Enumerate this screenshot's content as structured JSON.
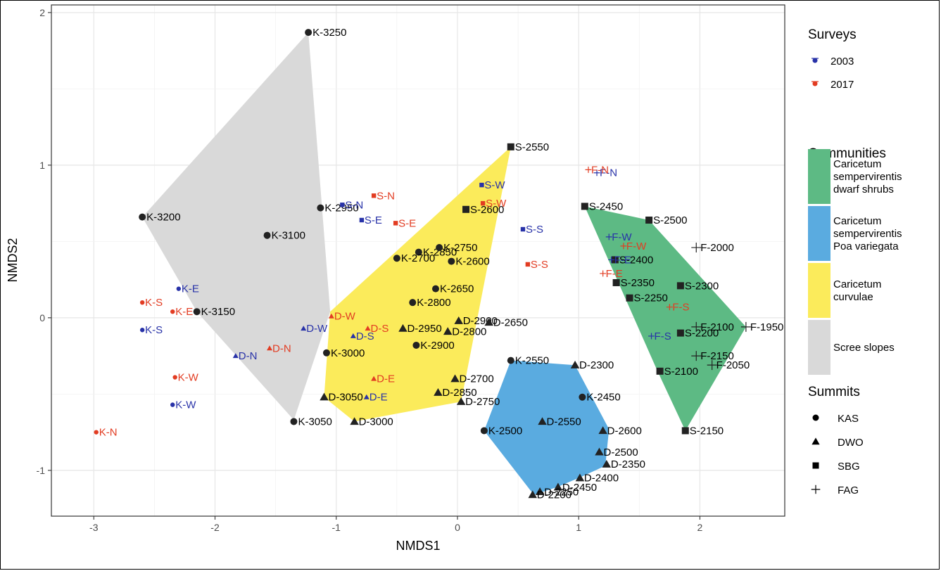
{
  "chart_data": {
    "type": "scatter",
    "xlabel": "NMDS1",
    "ylabel": "NMDS2",
    "xlim": [
      -3.35,
      2.7
    ],
    "ylim": [
      -1.3,
      2.05
    ],
    "xticks": [
      -3,
      -2,
      -1,
      0,
      1,
      2
    ],
    "yticks": [
      -1,
      0,
      1,
      2
    ],
    "xtick_labels": [
      "-3",
      "-2",
      "-1",
      "0",
      "1",
      "2"
    ],
    "ytick_labels": [
      "-1",
      "0",
      "1",
      "2"
    ],
    "grid": true,
    "legend_position": "right",
    "colors": {
      "2003": "#2832a8",
      "2017": "#e23c22",
      "sites": "#222222",
      "scree": "#d9d9d9",
      "curvulae": "#fbeb5b",
      "poa": "#5aabe0",
      "dwarf": "#5dba84"
    },
    "hulls": [
      {
        "key": "scree",
        "points": [
          [
            -2.6,
            0.66
          ],
          [
            -1.23,
            1.87
          ],
          [
            -1.05,
            0.04
          ],
          [
            -1.35,
            -0.67
          ],
          [
            -2.15,
            0.04
          ]
        ]
      },
      {
        "key": "curvulae",
        "points": [
          [
            -1.05,
            0.04
          ],
          [
            0.44,
            1.12
          ],
          [
            0.03,
            -0.55
          ],
          [
            -0.85,
            -0.68
          ],
          [
            -1.1,
            -0.52
          ]
        ]
      },
      {
        "key": "poa",
        "points": [
          [
            0.44,
            -0.28
          ],
          [
            0.97,
            -0.31
          ],
          [
            1.25,
            -0.73
          ],
          [
            1.22,
            -0.97
          ],
          [
            1.0,
            -1.05
          ],
          [
            0.82,
            -1.11
          ],
          [
            0.63,
            -1.16
          ],
          [
            0.22,
            -0.74
          ]
        ]
      },
      {
        "key": "dwarf",
        "points": [
          [
            1.05,
            0.73
          ],
          [
            1.58,
            0.64
          ],
          [
            2.38,
            -0.06
          ],
          [
            1.88,
            -0.74
          ],
          [
            1.65,
            -0.35
          ]
        ]
      }
    ],
    "points": [
      {
        "label": "K-3250",
        "x": -1.23,
        "y": 1.87,
        "shape": "circle",
        "group": "sites"
      },
      {
        "label": "K-3200",
        "x": -2.6,
        "y": 0.66,
        "shape": "circle",
        "group": "sites"
      },
      {
        "label": "K-3100",
        "x": -1.57,
        "y": 0.54,
        "shape": "circle",
        "group": "sites"
      },
      {
        "label": "K-3150",
        "x": -2.15,
        "y": 0.04,
        "shape": "circle",
        "group": "sites"
      },
      {
        "label": "K-2950",
        "x": -1.13,
        "y": 0.72,
        "shape": "circle",
        "group": "sites"
      },
      {
        "label": "K-3000",
        "x": -1.08,
        "y": -0.23,
        "shape": "circle",
        "group": "sites"
      },
      {
        "label": "K-3050",
        "x": -1.35,
        "y": -0.68,
        "shape": "circle",
        "group": "sites"
      },
      {
        "label": "K-2850",
        "x": -0.32,
        "y": 0.43,
        "shape": "circle",
        "group": "sites"
      },
      {
        "label": "K-2750",
        "x": -0.15,
        "y": 0.46,
        "shape": "circle",
        "group": "sites"
      },
      {
        "label": "K-2700",
        "x": -0.5,
        "y": 0.39,
        "shape": "circle",
        "group": "sites"
      },
      {
        "label": "K-2600",
        "x": -0.05,
        "y": 0.37,
        "shape": "circle",
        "group": "sites"
      },
      {
        "label": "K-2650",
        "x": -0.18,
        "y": 0.19,
        "shape": "circle",
        "group": "sites"
      },
      {
        "label": "K-2800",
        "x": -0.37,
        "y": 0.1,
        "shape": "circle",
        "group": "sites"
      },
      {
        "label": "K-2900",
        "x": -0.34,
        "y": -0.18,
        "shape": "circle",
        "group": "sites"
      },
      {
        "label": "K-2550",
        "x": 0.44,
        "y": -0.28,
        "shape": "circle",
        "group": "sites"
      },
      {
        "label": "K-2450",
        "x": 1.03,
        "y": -0.52,
        "shape": "circle",
        "group": "sites"
      },
      {
        "label": "K-2500",
        "x": 0.22,
        "y": -0.74,
        "shape": "circle",
        "group": "sites"
      },
      {
        "label": "S-2550",
        "x": 0.44,
        "y": 1.12,
        "shape": "square",
        "group": "sites"
      },
      {
        "label": "S-2600",
        "x": 0.07,
        "y": 0.71,
        "shape": "square",
        "group": "sites"
      },
      {
        "label": "S-2450",
        "x": 1.05,
        "y": 0.73,
        "shape": "square",
        "group": "sites"
      },
      {
        "label": "S-2500",
        "x": 1.58,
        "y": 0.64,
        "shape": "square",
        "group": "sites"
      },
      {
        "label": "S-2400",
        "x": 1.3,
        "y": 0.38,
        "shape": "square",
        "group": "sites"
      },
      {
        "label": "S-2350",
        "x": 1.31,
        "y": 0.23,
        "shape": "square",
        "group": "sites"
      },
      {
        "label": "S-2300",
        "x": 1.84,
        "y": 0.21,
        "shape": "square",
        "group": "sites"
      },
      {
        "label": "S-2250",
        "x": 1.42,
        "y": 0.13,
        "shape": "square",
        "group": "sites"
      },
      {
        "label": "S-2200",
        "x": 1.84,
        "y": -0.1,
        "shape": "square",
        "group": "sites"
      },
      {
        "label": "S-2100",
        "x": 1.67,
        "y": -0.35,
        "shape": "square",
        "group": "sites"
      },
      {
        "label": "S-2150",
        "x": 1.88,
        "y": -0.74,
        "shape": "square",
        "group": "sites"
      },
      {
        "label": "D-2950",
        "x": -0.45,
        "y": -0.07,
        "shape": "triangle",
        "group": "sites"
      },
      {
        "label": "D-2900",
        "x": 0.01,
        "y": -0.02,
        "shape": "triangle",
        "group": "sites"
      },
      {
        "label": "D-2800",
        "x": -0.08,
        "y": -0.09,
        "shape": "triangle",
        "group": "sites"
      },
      {
        "label": "D-2650",
        "x": 0.26,
        "y": -0.03,
        "shape": "triangle",
        "group": "sites"
      },
      {
        "label": "D-2700",
        "x": -0.02,
        "y": -0.4,
        "shape": "triangle",
        "group": "sites"
      },
      {
        "label": "D-2850",
        "x": -0.16,
        "y": -0.49,
        "shape": "triangle",
        "group": "sites"
      },
      {
        "label": "D-2750",
        "x": 0.03,
        "y": -0.55,
        "shape": "triangle",
        "group": "sites"
      },
      {
        "label": "D-3050",
        "x": -1.1,
        "y": -0.52,
        "shape": "triangle",
        "group": "sites"
      },
      {
        "label": "D-3000",
        "x": -0.85,
        "y": -0.68,
        "shape": "triangle",
        "group": "sites"
      },
      {
        "label": "D-2300",
        "x": 0.97,
        "y": -0.31,
        "shape": "triangle",
        "group": "sites"
      },
      {
        "label": "D-2550",
        "x": 0.7,
        "y": -0.68,
        "shape": "triangle",
        "group": "sites"
      },
      {
        "label": "D-2600",
        "x": 1.2,
        "y": -0.74,
        "shape": "triangle",
        "group": "sites"
      },
      {
        "label": "D-2500",
        "x": 1.17,
        "y": -0.88,
        "shape": "triangle",
        "group": "sites"
      },
      {
        "label": "D-2350",
        "x": 1.23,
        "y": -0.96,
        "shape": "triangle",
        "group": "sites"
      },
      {
        "label": "D-2400",
        "x": 1.01,
        "y": -1.05,
        "shape": "triangle",
        "group": "sites"
      },
      {
        "label": "D-2450",
        "x": 0.83,
        "y": -1.11,
        "shape": "triangle",
        "group": "sites"
      },
      {
        "label": "D-2250",
        "x": 0.68,
        "y": -1.14,
        "shape": "triangle",
        "group": "sites"
      },
      {
        "label": "D-2200",
        "x": 0.62,
        "y": -1.16,
        "shape": "triangle",
        "group": "sites"
      },
      {
        "label": "F-2000",
        "x": 1.97,
        "y": 0.46,
        "shape": "plus",
        "group": "sites"
      },
      {
        "label": "F-2100",
        "x": 1.97,
        "y": -0.06,
        "shape": "plus",
        "group": "sites"
      },
      {
        "label": "F-1950",
        "x": 2.38,
        "y": -0.06,
        "shape": "plus",
        "group": "sites"
      },
      {
        "label": "F-2150",
        "x": 1.97,
        "y": -0.25,
        "shape": "plus",
        "group": "sites"
      },
      {
        "label": "F-2050",
        "x": 2.1,
        "y": -0.31,
        "shape": "plus",
        "group": "sites"
      },
      {
        "label": "K-E",
        "x": -2.3,
        "y": 0.19,
        "shape": "circle",
        "group": "2003"
      },
      {
        "label": "K-S",
        "x": -2.6,
        "y": -0.08,
        "shape": "circle",
        "group": "2003"
      },
      {
        "label": "K-W",
        "x": -2.35,
        "y": -0.57,
        "shape": "circle",
        "group": "2003"
      },
      {
        "label": "D-W",
        "x": -1.27,
        "y": -0.07,
        "shape": "triangle",
        "group": "2003"
      },
      {
        "label": "D-N",
        "x": -1.83,
        "y": -0.25,
        "shape": "triangle",
        "group": "2003"
      },
      {
        "label": "D-S",
        "x": -0.86,
        "y": -0.12,
        "shape": "triangle",
        "group": "2003"
      },
      {
        "label": "D-E",
        "x": -0.75,
        "y": -0.52,
        "shape": "triangle",
        "group": "2003"
      },
      {
        "label": "S-N",
        "x": -0.95,
        "y": 0.74,
        "shape": "square",
        "group": "2003"
      },
      {
        "label": "S-E",
        "x": -0.79,
        "y": 0.64,
        "shape": "square",
        "group": "2003"
      },
      {
        "label": "S-W",
        "x": 0.2,
        "y": 0.87,
        "shape": "square",
        "group": "2003"
      },
      {
        "label": "S-S",
        "x": 0.54,
        "y": 0.58,
        "shape": "square",
        "group": "2003"
      },
      {
        "label": "F-N",
        "x": 1.15,
        "y": 0.95,
        "shape": "plus",
        "group": "2003"
      },
      {
        "label": "F-W",
        "x": 1.25,
        "y": 0.53,
        "shape": "plus",
        "group": "2003"
      },
      {
        "label": "F-E",
        "x": 1.27,
        "y": 0.38,
        "shape": "plus",
        "group": "2003"
      },
      {
        "label": "F-S",
        "x": 1.6,
        "y": -0.12,
        "shape": "plus",
        "group": "2003"
      },
      {
        "label": "K-S",
        "x": -2.6,
        "y": 0.1,
        "shape": "circle",
        "group": "2017"
      },
      {
        "label": "K-E",
        "x": -2.35,
        "y": 0.04,
        "shape": "circle",
        "group": "2017"
      },
      {
        "label": "K-W",
        "x": -2.33,
        "y": -0.39,
        "shape": "circle",
        "group": "2017"
      },
      {
        "label": "K-N",
        "x": -2.98,
        "y": -0.75,
        "shape": "circle",
        "group": "2017"
      },
      {
        "label": "D-W",
        "x": -1.04,
        "y": 0.01,
        "shape": "triangle",
        "group": "2017"
      },
      {
        "label": "D-N",
        "x": -1.55,
        "y": -0.2,
        "shape": "triangle",
        "group": "2017"
      },
      {
        "label": "D-S",
        "x": -0.74,
        "y": -0.07,
        "shape": "triangle",
        "group": "2017"
      },
      {
        "label": "D-E",
        "x": -0.69,
        "y": -0.4,
        "shape": "triangle",
        "group": "2017"
      },
      {
        "label": "S-N",
        "x": -0.69,
        "y": 0.8,
        "shape": "square",
        "group": "2017"
      },
      {
        "label": "S-E",
        "x": -0.51,
        "y": 0.62,
        "shape": "square",
        "group": "2017"
      },
      {
        "label": "S-W",
        "x": 0.21,
        "y": 0.75,
        "shape": "square",
        "group": "2017"
      },
      {
        "label": "S-S",
        "x": 0.58,
        "y": 0.35,
        "shape": "square",
        "group": "2017"
      },
      {
        "label": "F-N",
        "x": 1.08,
        "y": 0.97,
        "shape": "plus",
        "group": "2017"
      },
      {
        "label": "F-W",
        "x": 1.37,
        "y": 0.47,
        "shape": "plus",
        "group": "2017"
      },
      {
        "label": "F-E",
        "x": 1.2,
        "y": 0.29,
        "shape": "plus",
        "group": "2017"
      },
      {
        "label": "F-S",
        "x": 1.75,
        "y": 0.07,
        "shape": "plus",
        "group": "2017"
      }
    ]
  },
  "legend": {
    "surveys": {
      "title": "Surveys",
      "items": [
        {
          "label": "2003",
          "key": "2003"
        },
        {
          "label": "2017",
          "key": "2017"
        }
      ]
    },
    "communities": {
      "title": "Communities",
      "items": [
        {
          "lines": [
            "Caricetum",
            "sempervirentis",
            "dwarf shrubs"
          ],
          "key": "dwarf"
        },
        {
          "lines": [
            "Caricetum",
            "sempervirentis",
            "Poa variegata"
          ],
          "key": "poa"
        },
        {
          "lines": [
            "Caricetum",
            "curvulae"
          ],
          "key": "curvulae"
        },
        {
          "lines": [
            "Scree slopes"
          ],
          "key": "scree"
        }
      ]
    },
    "summits": {
      "title": "Summits",
      "items": [
        {
          "label": "KAS",
          "shape": "circle"
        },
        {
          "label": "DWO",
          "shape": "triangle"
        },
        {
          "label": "SBG",
          "shape": "square"
        },
        {
          "label": "FAG",
          "shape": "plus"
        }
      ]
    }
  }
}
